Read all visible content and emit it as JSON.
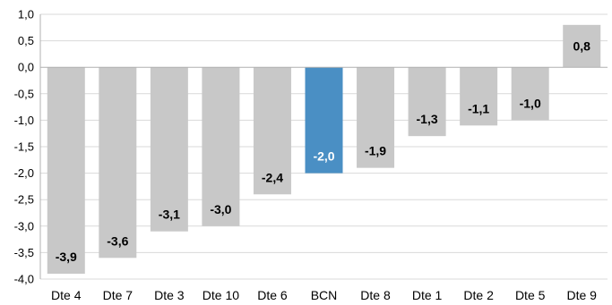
{
  "chart_data": {
    "type": "bar",
    "title": "",
    "xlabel": "",
    "ylabel": "",
    "categories": [
      "Dte 4",
      "Dte 7",
      "Dte 3",
      "Dte 10",
      "Dte 6",
      "BCN",
      "Dte 8",
      "Dte 1",
      "Dte 2",
      "Dte 5",
      "Dte 9"
    ],
    "values": [
      -3.9,
      -3.6,
      -3.1,
      -3.0,
      -2.4,
      -2.0,
      -1.9,
      -1.3,
      -1.1,
      -1.0,
      0.8
    ],
    "value_labels": [
      "-3,9",
      "-3,6",
      "-3,1",
      "-3,0",
      "-2,4",
      "-2,0",
      "-1,9",
      "-1,3",
      "-1,1",
      "-1,0",
      "0,8"
    ],
    "ylim": [
      -4.0,
      1.0
    ],
    "yticks": [
      1.0,
      0.5,
      0.0,
      -0.5,
      -1.0,
      -1.5,
      -2.0,
      -2.5,
      -3.0,
      -3.5,
      -4.0
    ],
    "ytick_labels": [
      "1,0",
      "0,5",
      "0,0",
      "-0,5",
      "-1,0",
      "-1,5",
      "-2,0",
      "-2,5",
      "-3,0",
      "-3,5",
      "-4,0"
    ],
    "grid": true,
    "legend": "none",
    "highlight_category": "BCN",
    "colors": {
      "bar": "#c8c8c8",
      "highlight": "#4a8fc4",
      "grid": "#d9d9d9",
      "axis": "#b0b0b0",
      "label": "#000000",
      "highlight_label": "#ffffff"
    }
  }
}
